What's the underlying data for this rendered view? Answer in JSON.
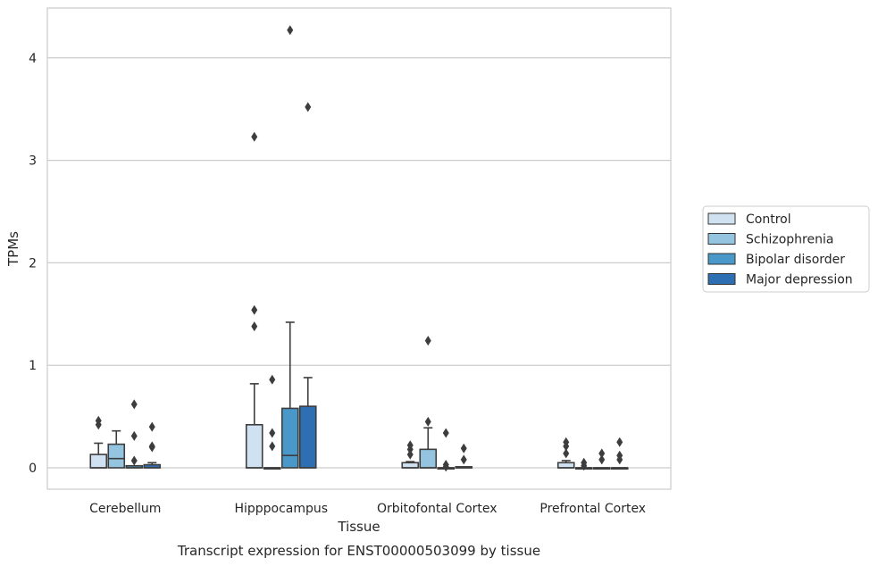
{
  "chart_data": {
    "type": "box",
    "xlabel": "Tissue",
    "ylabel": "TPMs",
    "caption": "Transcript expression for ENST00000503099 by tissue",
    "ylim": [
      -0.2,
      4.5
    ],
    "yticks": [
      0,
      1,
      2,
      3,
      4
    ],
    "grid": "horizontal",
    "legend_position": "right",
    "categories": [
      "Cerebellum",
      "Hipppocampus",
      "Orbitofontal Cortex",
      "Prefrontal Cortex"
    ],
    "series": [
      {
        "name": "Control",
        "color": "#d0e1f2",
        "boxes": [
          {
            "min": 0,
            "q1": 0,
            "median": 0,
            "q3": 0.13,
            "max": 0.24,
            "outliers": [
              0.42,
              0.46
            ]
          },
          {
            "min": 0,
            "q1": 0,
            "median": 0,
            "q3": 0.42,
            "max": 0.82,
            "outliers": [
              1.38,
              1.54,
              3.23
            ]
          },
          {
            "min": 0,
            "q1": 0,
            "median": 0,
            "q3": 0.05,
            "max": 0.06,
            "outliers": [
              0.13,
              0.18,
              0.22
            ]
          },
          {
            "min": 0,
            "q1": 0,
            "median": 0,
            "q3": 0.05,
            "max": 0.07,
            "outliers": [
              0.14,
              0.21,
              0.25
            ]
          }
        ]
      },
      {
        "name": "Schizophrenia",
        "color": "#94c4df",
        "boxes": [
          {
            "min": 0,
            "q1": 0,
            "median": 0.09,
            "q3": 0.23,
            "max": 0.36,
            "outliers": []
          },
          {
            "min": 0,
            "q1": 0,
            "median": 0,
            "q3": 0,
            "max": 0,
            "outliers": [
              0.21,
              0.34,
              0.86
            ]
          },
          {
            "min": 0,
            "q1": 0,
            "median": 0,
            "q3": 0.18,
            "max": 0.39,
            "outliers": [
              0.45,
              1.24
            ]
          },
          {
            "min": 0,
            "q1": 0,
            "median": 0,
            "q3": 0,
            "max": 0,
            "outliers": [
              0.02,
              0.05
            ]
          }
        ]
      },
      {
        "name": "Bipolar disorder",
        "color": "#4a98c9",
        "boxes": [
          {
            "min": 0,
            "q1": 0,
            "median": 0,
            "q3": 0.02,
            "max": 0.02,
            "outliers": [
              0.07,
              0.31,
              0.62
            ]
          },
          {
            "min": 0,
            "q1": 0,
            "median": 0.12,
            "q3": 0.58,
            "max": 1.42,
            "outliers": [
              4.27
            ]
          },
          {
            "min": 0,
            "q1": 0,
            "median": 0,
            "q3": 0,
            "max": 0,
            "outliers": [
              0.01,
              0.03,
              0.34
            ]
          },
          {
            "min": 0,
            "q1": 0,
            "median": 0,
            "q3": 0,
            "max": 0,
            "outliers": [
              0.08,
              0.14
            ]
          }
        ]
      },
      {
        "name": "Major depression",
        "color": "#2e6fb4",
        "boxes": [
          {
            "min": 0,
            "q1": 0,
            "median": 0,
            "q3": 0.03,
            "max": 0.05,
            "outliers": [
              0.2,
              0.21,
              0.4
            ]
          },
          {
            "min": 0,
            "q1": 0,
            "median": 0,
            "q3": 0.6,
            "max": 0.88,
            "outliers": [
              3.52
            ]
          },
          {
            "min": 0,
            "q1": 0,
            "median": 0,
            "q3": 0.01,
            "max": 0.01,
            "outliers": [
              0.08,
              0.19
            ]
          },
          {
            "min": 0,
            "q1": 0,
            "median": 0,
            "q3": 0,
            "max": 0,
            "outliers": [
              0.08,
              0.12,
              0.25
            ]
          }
        ]
      }
    ]
  }
}
